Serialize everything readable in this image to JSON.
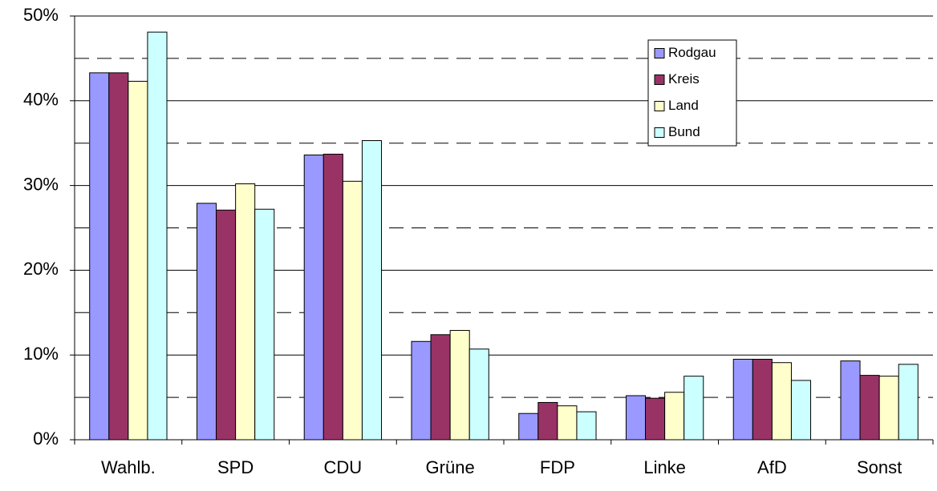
{
  "chart_data": {
    "type": "bar",
    "categories": [
      "Wahlb.",
      "SPD",
      "CDU",
      "Grüne",
      "FDP",
      "Linke",
      "AfD",
      "Sonst"
    ],
    "series": [
      {
        "name": "Rodgau",
        "color": "#9999ff",
        "values": [
          43.3,
          27.9,
          33.6,
          11.6,
          3.1,
          5.2,
          9.5,
          9.3
        ]
      },
      {
        "name": "Kreis",
        "color": "#993366",
        "values": [
          43.3,
          27.1,
          33.7,
          12.4,
          4.4,
          4.9,
          9.5,
          7.6
        ]
      },
      {
        "name": "Land",
        "color": "#ffffcc",
        "values": [
          42.3,
          30.2,
          30.5,
          12.9,
          4.0,
          5.6,
          9.1,
          7.5
        ]
      },
      {
        "name": "Bund",
        "color": "#ccffff",
        "values": [
          48.1,
          27.2,
          35.3,
          10.7,
          3.3,
          7.5,
          7.0,
          8.9
        ]
      }
    ],
    "ylim": [
      0,
      50
    ],
    "yticks": [
      {
        "value": 0,
        "label": "0%"
      },
      {
        "value": 10,
        "label": "10%"
      },
      {
        "value": 20,
        "label": "20%"
      },
      {
        "value": 30,
        "label": "30%"
      },
      {
        "value": 40,
        "label": "40%"
      },
      {
        "value": 50,
        "label": "50%"
      }
    ],
    "minor_yticks": [
      5,
      15,
      25,
      35,
      45
    ],
    "grid": true,
    "legend": "upper right"
  }
}
